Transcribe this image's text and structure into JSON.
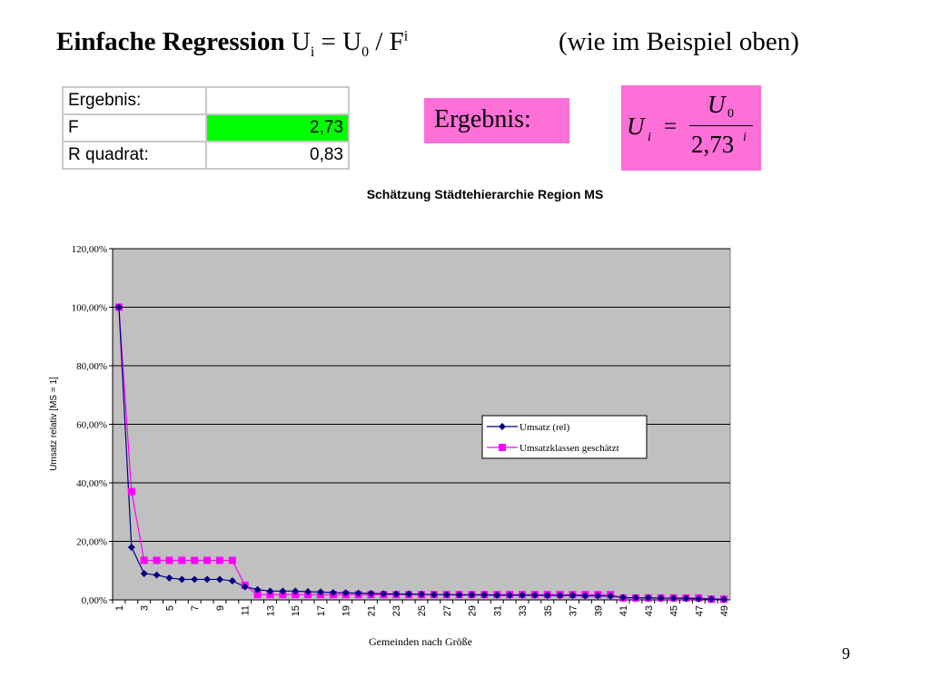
{
  "slide": {
    "title_bold": "Einfache Regression",
    "title_formula_u": "U",
    "title_formula_sub_i": "i",
    "title_formula_eq": " = U",
    "title_formula_sub_0": "0",
    "title_formula_div": " / F",
    "title_formula_sup_i": "i",
    "title_note": "(wie im Beispiel oben)",
    "page_number": "9"
  },
  "result_table": {
    "rows": [
      {
        "label": "Ergebnis:",
        "value": ""
      },
      {
        "label": "F",
        "value": "2,73"
      },
      {
        "label": "R quadrat:",
        "value": "0,83"
      }
    ]
  },
  "pink_label": "Ergebnis:",
  "formula": {
    "lhs": "U",
    "lhs_sub": "i",
    "eq": "=",
    "num": "U",
    "num_sub": "0",
    "den": "2,73",
    "den_sup": "i"
  },
  "colors": {
    "highlight_green": "#00ff00",
    "pink": "#ff6fd8",
    "plot_bg": "#c0c0c0",
    "series1": "#000080",
    "series2": "#ff00ff"
  },
  "chart_data": {
    "type": "line",
    "title": "Schätzung Städtehierarchie Region MS",
    "xlabel": "Gemeinden nach Größe",
    "ylabel": "Umsatz relativ [MS = 1]",
    "ylim": [
      0,
      120
    ],
    "y_ticks": [
      "0,00%",
      "20,00%",
      "40,00%",
      "60,00%",
      "80,00%",
      "100,00%",
      "120,00%"
    ],
    "x": [
      1,
      2,
      3,
      4,
      5,
      6,
      7,
      8,
      9,
      10,
      11,
      12,
      13,
      14,
      15,
      16,
      17,
      18,
      19,
      20,
      21,
      22,
      23,
      24,
      25,
      26,
      27,
      28,
      29,
      30,
      31,
      32,
      33,
      34,
      35,
      36,
      37,
      38,
      39,
      40,
      41,
      42,
      43,
      44,
      45,
      46,
      47,
      48,
      49
    ],
    "x_tick_labels": [
      "1",
      "3",
      "5",
      "7",
      "9",
      "11",
      "13",
      "15",
      "17",
      "19",
      "21",
      "23",
      "25",
      "27",
      "29",
      "31",
      "33",
      "35",
      "37",
      "39",
      "41",
      "43",
      "45",
      "47",
      "49"
    ],
    "grid": true,
    "legend_position": "right",
    "series": [
      {
        "name": "Umsatz (rel)",
        "values": [
          100,
          18,
          9,
          8.5,
          7.5,
          7,
          7,
          7,
          7,
          6.5,
          4.5,
          3.5,
          3,
          3,
          3,
          2.8,
          2.7,
          2.5,
          2.4,
          2.3,
          2.2,
          2.1,
          2,
          2,
          1.9,
          1.8,
          1.8,
          1.7,
          1.7,
          1.7,
          1.6,
          1.6,
          1.6,
          1.6,
          1.5,
          1.5,
          1.5,
          1.4,
          1.4,
          1.3,
          0.8,
          0.7,
          0.7,
          0.6,
          0.6,
          0.5,
          0.4,
          0.3,
          0.2
        ]
      },
      {
        "name": "Umsatzklassen geschätzt",
        "values": [
          100,
          37,
          13.5,
          13.5,
          13.5,
          13.5,
          13.5,
          13.5,
          13.5,
          13.5,
          5,
          1.8,
          1.8,
          1.8,
          1.8,
          1.8,
          1.8,
          1.8,
          1.8,
          1.8,
          1.8,
          1.8,
          1.8,
          1.8,
          1.8,
          1.8,
          1.8,
          1.8,
          1.8,
          1.8,
          1.8,
          1.8,
          1.8,
          1.8,
          1.8,
          1.8,
          1.8,
          1.8,
          1.8,
          1.8,
          0.66,
          0.66,
          0.66,
          0.66,
          0.66,
          0.66,
          0.66,
          0.24,
          0.24
        ]
      }
    ]
  }
}
